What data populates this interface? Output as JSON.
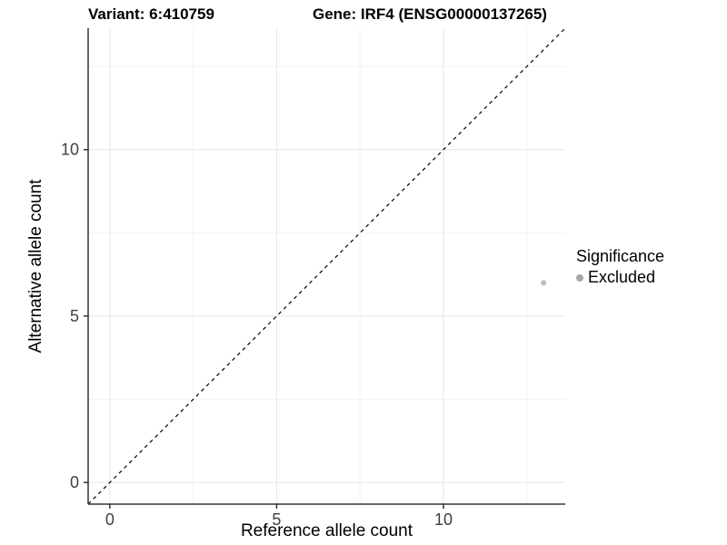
{
  "titles": {
    "variant": "Variant: 6:410759",
    "gene": "Gene: IRF4 (ENSG00000137265)"
  },
  "chart_data": {
    "type": "scatter",
    "title_left": "Variant: 6:410759",
    "title_right": "Gene: IRF4 (ENSG00000137265)",
    "xlabel": "Reference allele count",
    "ylabel": "Alternative allele count",
    "xlim": [
      -0.65,
      13.65
    ],
    "ylim": [
      -0.65,
      13.65
    ],
    "x_ticks": [
      0,
      5,
      10
    ],
    "y_ticks": [
      0,
      5,
      10
    ],
    "x_minor_ticks": [
      2.5,
      7.5,
      12.5
    ],
    "y_minor_ticks": [
      2.5,
      7.5,
      12.5
    ],
    "grid": true,
    "reference_line": {
      "slope": 1,
      "intercept": 0,
      "style": "dashed",
      "color": "#000000"
    },
    "series": [
      {
        "name": "Excluded",
        "color": "#bdbdbd",
        "point_radius": 3,
        "points": [
          {
            "x": 13,
            "y": 6
          }
        ]
      }
    ],
    "legend": {
      "title": "Significance",
      "position": "right",
      "items": [
        {
          "label": "Excluded",
          "color": "#a6a6a6"
        }
      ]
    }
  },
  "colors": {
    "background": "#ffffff",
    "axis_line": "#333333",
    "tick_label": "#404040",
    "grid_major": "#e6e6e6",
    "grid_minor": "#f2f2f2",
    "point": "#bdbdbd",
    "legend_dot": "#a6a6a6",
    "reference_line": "#000000"
  }
}
